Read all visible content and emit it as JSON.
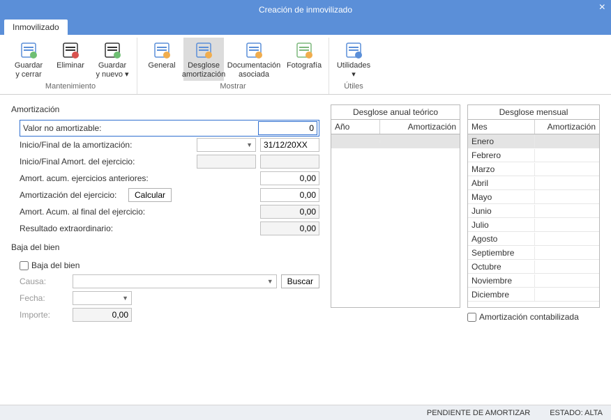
{
  "window": {
    "title": "Creación de inmovilizado"
  },
  "tabs": {
    "main": "Inmovilizado"
  },
  "ribbon": {
    "groups": [
      {
        "label": "Mantenimiento",
        "buttons": [
          {
            "name": "save-close",
            "line1": "Guardar",
            "line2": "y cerrar",
            "icon": "save-close-icon",
            "color1": "#5b8fd8",
            "color2": "#6fbf73"
          },
          {
            "name": "delete",
            "line1": "Eliminar",
            "line2": "",
            "icon": "delete-icon",
            "color1": "#333",
            "color2": "#d9534f"
          },
          {
            "name": "save-new",
            "line1": "Guardar",
            "line2": "y nuevo ▾",
            "icon": "save-new-icon",
            "color1": "#333",
            "color2": "#6fbf73"
          }
        ]
      },
      {
        "label": "Mostrar",
        "buttons": [
          {
            "name": "general",
            "line1": "General",
            "line2": "",
            "icon": "general-icon",
            "color1": "#5b8fd8",
            "color2": "#f0ad4e"
          },
          {
            "name": "desglose",
            "line1": "Desglose",
            "line2": "amortización",
            "icon": "desglose-icon",
            "color1": "#5b8fd8",
            "color2": "#f0ad4e",
            "active": true
          },
          {
            "name": "docs",
            "line1": "Documentación",
            "line2": "asociada",
            "icon": "docs-icon",
            "color1": "#5b8fd8",
            "color2": "#f0ad4e"
          },
          {
            "name": "photo",
            "line1": "Fotografía",
            "line2": "",
            "icon": "photo-icon",
            "color1": "#7db87d",
            "color2": "#f0ad4e"
          }
        ]
      },
      {
        "label": "Útiles",
        "buttons": [
          {
            "name": "utils",
            "line1": "Utilidades",
            "line2": "▾",
            "icon": "utils-icon",
            "color1": "#5b8fd8",
            "color2": "#5b8fd8"
          }
        ]
      }
    ]
  },
  "form": {
    "section_amort": "Amortización",
    "valor_no_amort_label": "Valor no amortizable:",
    "valor_no_amort_value": "0",
    "inicio_final_label": "Inicio/Final de la amortización:",
    "inicio_final_end": "31/12/20XX",
    "inicio_ej_label": "Inicio/Final Amort. del ejercicio:",
    "acum_ant_label": "Amort. acum. ejercicios anteriores:",
    "acum_ant_value": "0,00",
    "amort_ej_label": "Amortización del ejercicio:",
    "calcular_btn": "Calcular",
    "amort_ej_value": "0,00",
    "acum_fin_label": "Amort. Acum. al final del ejercicio:",
    "acum_fin_value": "0,00",
    "res_ext_label": "Resultado extraordinario:",
    "res_ext_value": "0,00",
    "section_baja": "Baja del bien",
    "baja_check": "Baja del bien",
    "causa_label": "Causa:",
    "buscar_btn": "Buscar",
    "fecha_label": "Fecha:",
    "importe_label": "Importe:",
    "importe_value": "0,00"
  },
  "annual": {
    "title": "Desglose anual teórico",
    "col_year": "Año",
    "col_amort": "Amortización",
    "rows": []
  },
  "monthly": {
    "title": "Desglose mensual",
    "col_month": "Mes",
    "col_amort": "Amortización",
    "rows": [
      "Enero",
      "Febrero",
      "Marzo",
      "Abril",
      "Mayo",
      "Junio",
      "Julio",
      "Agosto",
      "Septiembre",
      "Octubre",
      "Noviembre",
      "Diciembre"
    ],
    "check_label": "Amortización contabilizada"
  },
  "status": {
    "left": "PENDIENTE DE AMORTIZAR",
    "right": "ESTADO: ALTA"
  },
  "colors": {
    "accent": "#5b8fd8",
    "border": "#c0c0c0",
    "active_bg": "#dcdcdc"
  }
}
